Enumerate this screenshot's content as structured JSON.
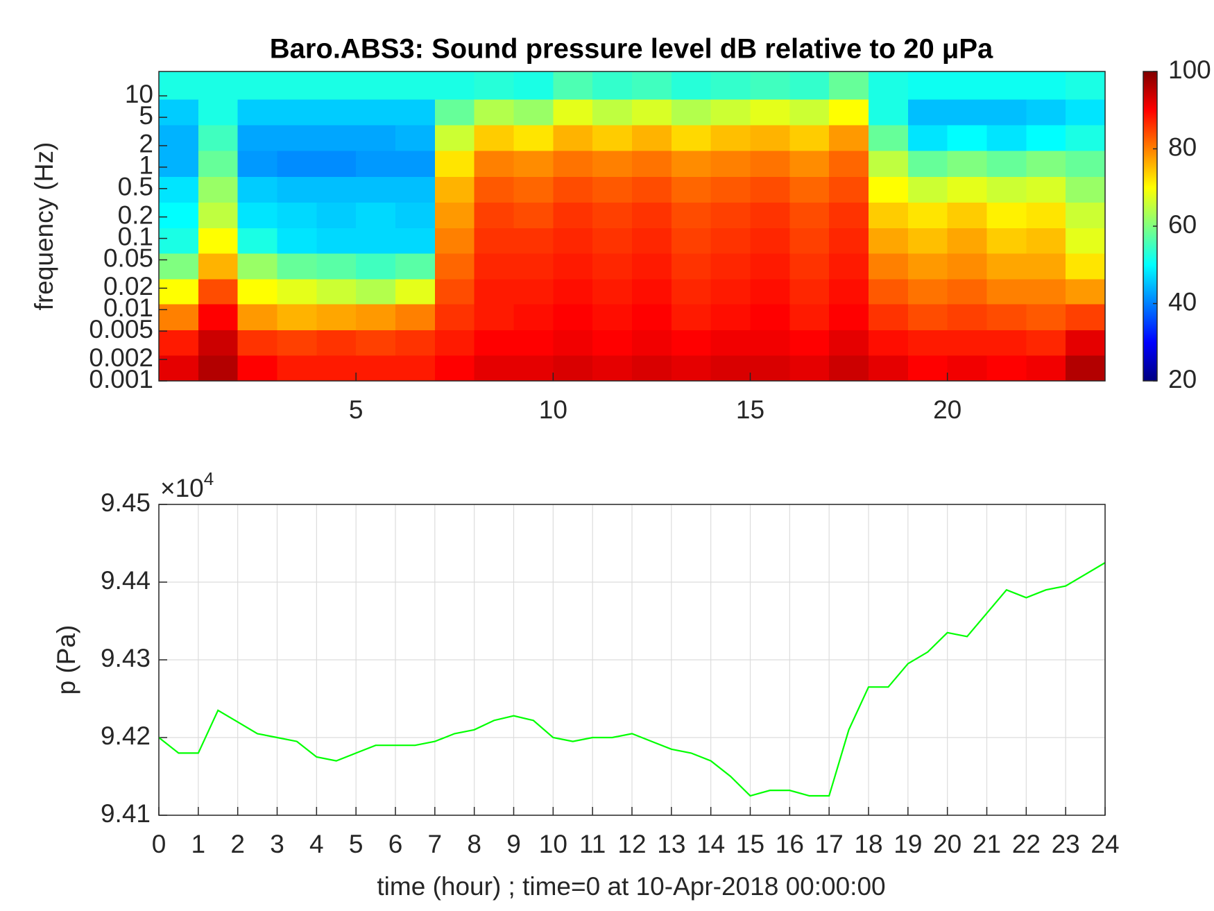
{
  "chart_data": [
    {
      "type": "heatmap",
      "title": "Baro.ABS3: Sound pressure level dB relative to 20 μPa",
      "y_label": "frequency (Hz)",
      "x_bins": [
        0,
        1,
        2,
        3,
        4,
        5,
        6,
        7,
        8,
        9,
        10,
        11,
        12,
        13,
        14,
        15,
        16,
        17,
        18,
        19,
        20,
        21,
        22,
        23,
        24
      ],
      "y_bins": [
        0.001,
        0.0023,
        0.0052,
        0.012,
        0.027,
        0.062,
        0.14,
        0.32,
        0.74,
        1.7,
        3.9,
        9,
        22
      ],
      "z": [
        [
          92,
          96,
          90,
          88,
          88,
          88,
          88,
          90,
          92,
          92,
          93,
          92,
          93,
          92,
          93,
          93,
          92,
          94,
          92,
          90,
          91,
          90,
          91,
          96
        ],
        [
          88,
          94,
          86,
          85,
          86,
          85,
          86,
          88,
          90,
          90,
          91,
          90,
          91,
          90,
          91,
          91,
          90,
          92,
          89,
          88,
          88,
          88,
          87,
          92
        ],
        [
          80,
          90,
          78,
          76,
          77,
          78,
          80,
          86,
          88,
          89,
          90,
          89,
          90,
          88,
          89,
          90,
          88,
          90,
          86,
          84,
          85,
          84,
          83,
          85
        ],
        [
          70,
          84,
          70,
          68,
          66,
          64,
          68,
          84,
          88,
          88,
          89,
          88,
          89,
          87,
          88,
          89,
          87,
          89,
          83,
          81,
          82,
          80,
          80,
          78
        ],
        [
          60,
          76,
          62,
          58,
          57,
          55,
          57,
          82,
          87,
          87,
          88,
          87,
          88,
          86,
          87,
          88,
          86,
          88,
          80,
          78,
          79,
          77,
          77,
          72
        ],
        [
          52,
          70,
          52,
          48,
          47,
          47,
          47,
          80,
          86,
          86,
          87,
          86,
          87,
          85,
          86,
          87,
          85,
          87,
          77,
          75,
          77,
          74,
          75,
          68
        ],
        [
          50,
          65,
          48,
          47,
          46,
          47,
          46,
          78,
          85,
          84,
          86,
          85,
          86,
          84,
          85,
          86,
          84,
          86,
          74,
          72,
          74,
          71,
          72,
          66
        ],
        [
          48,
          62,
          46,
          45,
          45,
          45,
          45,
          76,
          83,
          82,
          84,
          83,
          84,
          82,
          83,
          84,
          82,
          84,
          70,
          66,
          68,
          66,
          67,
          62
        ],
        [
          44,
          58,
          42,
          41,
          41,
          42,
          42,
          72,
          80,
          79,
          81,
          80,
          81,
          79,
          80,
          81,
          79,
          82,
          65,
          58,
          60,
          58,
          60,
          58
        ],
        [
          44,
          55,
          43,
          43,
          43,
          43,
          44,
          66,
          74,
          72,
          76,
          74,
          76,
          73,
          75,
          76,
          74,
          78,
          58,
          48,
          50,
          48,
          50,
          52
        ],
        [
          46,
          52,
          46,
          46,
          46,
          46,
          46,
          58,
          64,
          62,
          68,
          65,
          67,
          64,
          66,
          68,
          66,
          70,
          52,
          45,
          45,
          45,
          46,
          48
        ],
        [
          52,
          52,
          52,
          52,
          52,
          52,
          52,
          52,
          53,
          52,
          56,
          54,
          55,
          53,
          54,
          55,
          54,
          58,
          52,
          51,
          51,
          51,
          51,
          52
        ]
      ],
      "xlim": [
        0,
        24
      ],
      "xticks": [
        5,
        10,
        15,
        20
      ],
      "ylim": [
        0.001,
        22
      ],
      "log_y": true,
      "yticks": [
        0.001,
        0.002,
        0.005,
        0.01,
        0.02,
        0.05,
        0.1,
        0.2,
        0.5,
        1,
        2,
        5,
        10
      ],
      "colormap": "jet",
      "clim": [
        20,
        100
      ],
      "cticks": [
        20,
        40,
        60,
        80,
        100
      ]
    },
    {
      "type": "line",
      "x_label": "time (hour) ; time=0 at 10-Apr-2018 00:00:00",
      "y_label": "p (Pa)",
      "y_multiplier": "×10",
      "y_multiplier_exponent": "4",
      "x": [
        0,
        0.5,
        1,
        1.5,
        2,
        2.5,
        3,
        3.5,
        4,
        4.5,
        5,
        5.5,
        6,
        6.5,
        7,
        7.5,
        8,
        8.5,
        9,
        9.5,
        10,
        10.5,
        11,
        11.5,
        12,
        12.5,
        13,
        13.5,
        14,
        14.5,
        15,
        15.5,
        16,
        16.5,
        17,
        17.5,
        18,
        18.5,
        19,
        19.5,
        20,
        20.5,
        21,
        21.5,
        22,
        22.5,
        23,
        23.5,
        24
      ],
      "values": [
        9.42,
        9.418,
        9.418,
        9.4235,
        9.422,
        9.4205,
        9.42,
        9.4195,
        9.4175,
        9.417,
        9.418,
        9.419,
        9.419,
        9.419,
        9.4195,
        9.4205,
        9.421,
        9.4222,
        9.4228,
        9.4222,
        9.42,
        9.4195,
        9.42,
        9.42,
        9.4205,
        9.4195,
        9.4185,
        9.418,
        9.417,
        9.415,
        9.4125,
        9.4132,
        9.4132,
        9.4125,
        9.4125,
        9.421,
        9.4265,
        9.4265,
        9.4295,
        9.431,
        9.4335,
        9.433,
        9.436,
        9.439,
        9.438,
        9.439,
        9.4395,
        9.441,
        9.4425
      ],
      "color": "#00ff00",
      "xlim": [
        0,
        24
      ],
      "xticks": [
        0,
        1,
        2,
        3,
        4,
        5,
        6,
        7,
        8,
        9,
        10,
        11,
        12,
        13,
        14,
        15,
        16,
        17,
        18,
        19,
        20,
        21,
        22,
        23,
        24
      ],
      "ylim": [
        9.41,
        9.45
      ],
      "yticks": [
        9.41,
        9.42,
        9.43,
        9.44,
        9.45
      ],
      "grid": true
    }
  ]
}
